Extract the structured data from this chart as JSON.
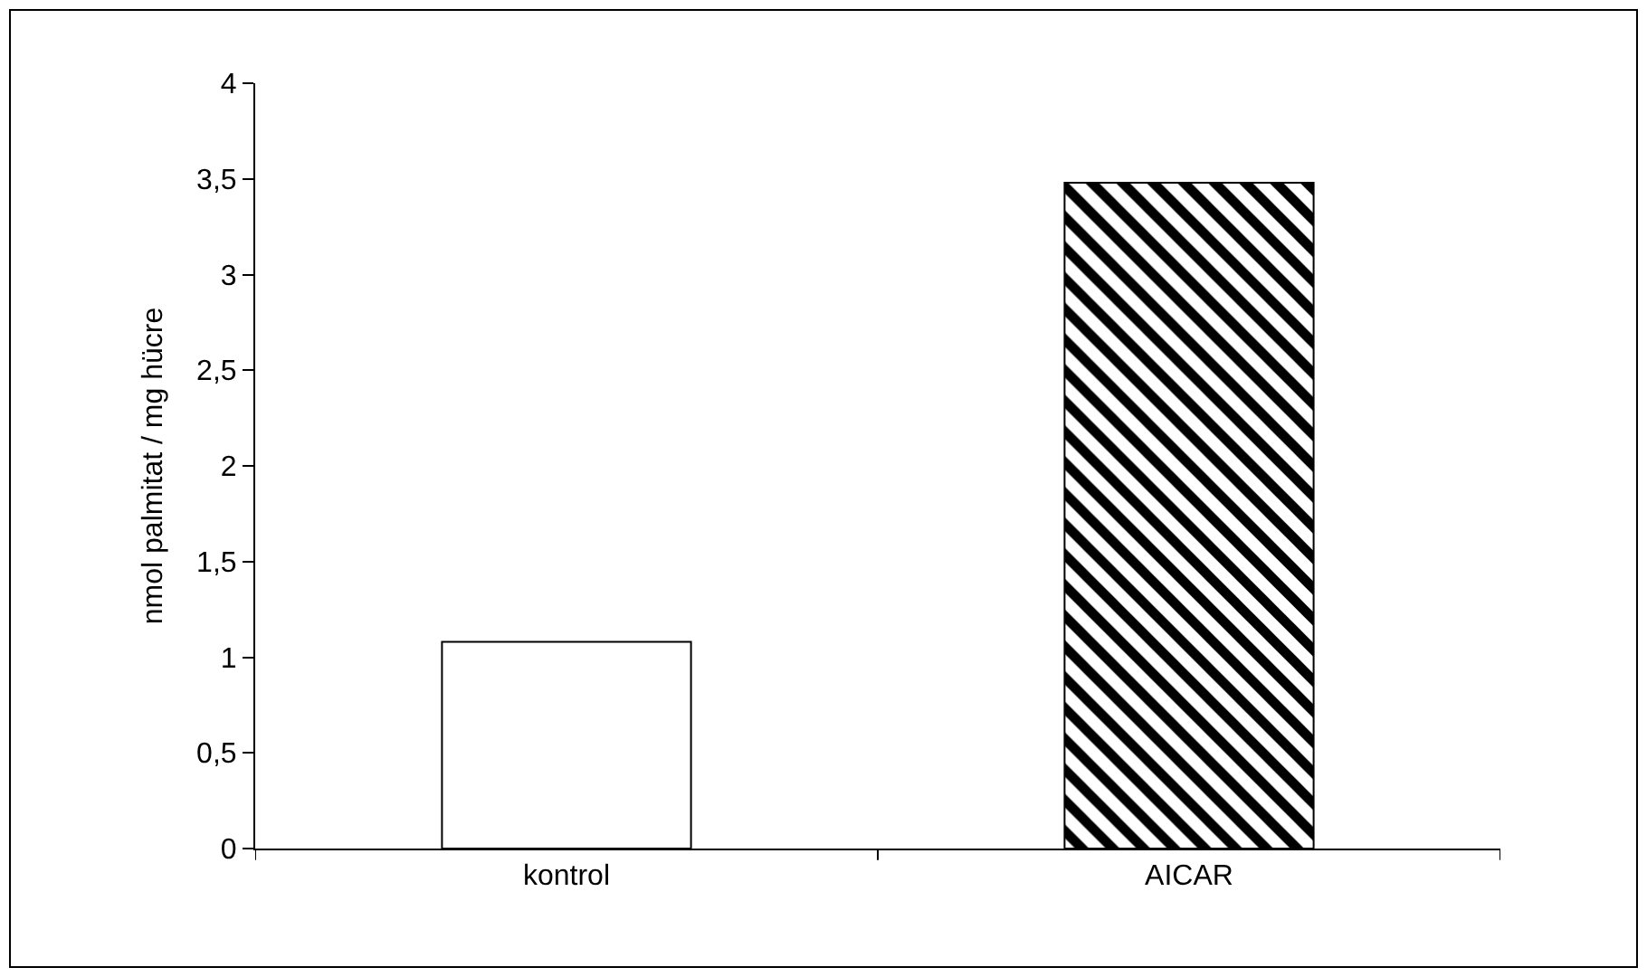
{
  "chart_data": {
    "type": "bar",
    "ylabel": "nmol palmitat / mg hücre",
    "categories": [
      "kontrol",
      "AICAR"
    ],
    "values": [
      1.08,
      3.48
    ],
    "colors": [
      "#ffffff",
      "#000000"
    ],
    "ylim": [
      0,
      4
    ],
    "yticks": [
      0,
      {
        "value": 0.5,
        "label": "0,5"
      },
      1,
      {
        "value": 1.5,
        "label": "1,5"
      },
      2,
      {
        "value": 2.5,
        "label": "2,5"
      },
      3,
      {
        "value": 3.5,
        "label": "3,5"
      },
      4
    ]
  }
}
